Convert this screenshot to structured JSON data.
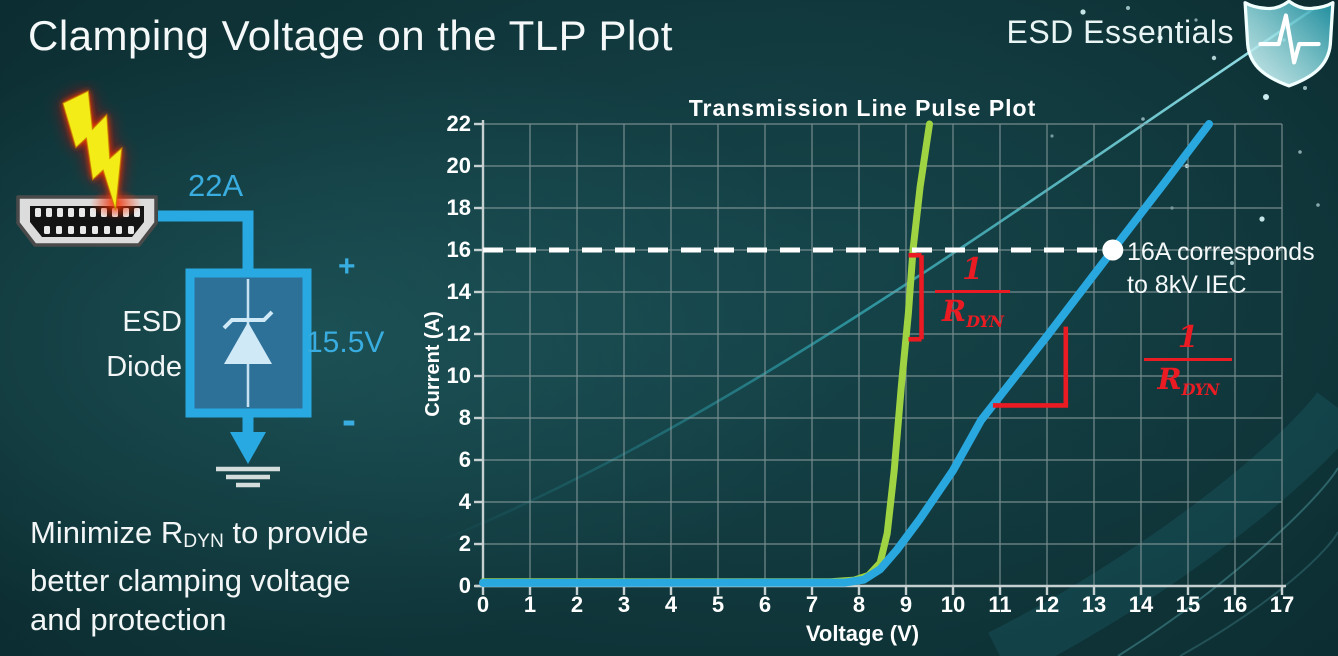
{
  "slide": {
    "title": "Clamping Voltage on the TLP Plot",
    "brand": "ESD Essentials",
    "brand_icon": "shield-pulse-icon",
    "caption": {
      "line1_pre": "Minimize R",
      "line1_sub": "DYN",
      "line1_post": " to provide",
      "line2": "better clamping voltage",
      "line3": "and protection"
    }
  },
  "diagram": {
    "surge_current_label": "22A",
    "device_label_line1": "ESD",
    "device_label_line2": "Diode",
    "plus_label": "+",
    "clamp_voltage_label": "15.5V",
    "minus_label": "-",
    "icons": [
      "lightning-icon",
      "hdmi-connector-icon",
      "zener-diode-icon",
      "ground-icon"
    ],
    "accent_color": "#29a9e2"
  },
  "chart_data": {
    "type": "line",
    "title": "Transmission Line Pulse Plot",
    "xlabel": "Voltage (V)",
    "ylabel": "Current (A)",
    "xlim": [
      0,
      17
    ],
    "ylim": [
      0,
      22
    ],
    "xticks": [
      0,
      1,
      2,
      3,
      4,
      5,
      6,
      7,
      8,
      9,
      10,
      11,
      12,
      13,
      14,
      15,
      16,
      17
    ],
    "yticks": [
      0,
      2,
      4,
      6,
      8,
      10,
      12,
      14,
      16,
      18,
      20,
      22
    ],
    "grid": true,
    "legend": "none",
    "series": [
      {
        "id": "green-curve-low-rdyn",
        "color": "#9fd342",
        "width": 7,
        "points": [
          [
            0,
            0.2
          ],
          [
            7.4,
            0.2
          ],
          [
            7.9,
            0.28
          ],
          [
            8.2,
            0.5
          ],
          [
            8.45,
            1.1
          ],
          [
            8.6,
            2.5
          ],
          [
            8.75,
            5.5
          ],
          [
            8.9,
            9.5
          ],
          [
            9.05,
            13
          ],
          [
            9.15,
            16
          ],
          [
            9.3,
            19
          ],
          [
            9.5,
            22
          ]
        ]
      },
      {
        "id": "blue-curve-high-rdyn",
        "color": "#29a8e0",
        "width": 8,
        "points": [
          [
            0,
            0.15
          ],
          [
            7.7,
            0.16
          ],
          [
            8.1,
            0.3
          ],
          [
            8.45,
            0.8
          ],
          [
            8.8,
            1.7
          ],
          [
            9.3,
            3.2
          ],
          [
            10.0,
            5.5
          ],
          [
            10.6,
            7.9
          ],
          [
            12.0,
            11.9
          ],
          [
            13.4,
            16
          ],
          [
            14.5,
            19.2
          ],
          [
            15.45,
            22
          ]
        ]
      }
    ],
    "reference": {
      "y": 16,
      "marker_x": 13.4,
      "label_line1": "16A corresponds",
      "label_line2": "to 8kV IEC",
      "color": "#ffffff"
    },
    "slope_marks": [
      {
        "type": "bracket",
        "x": 9.33,
        "y_top": 15.75,
        "y_bot": 11.75
      },
      {
        "type": "angle",
        "x_v": 12.4,
        "y_top": 12.35,
        "y_bot": 8.6,
        "x_h_start": 10.85
      }
    ],
    "fractions": [
      {
        "num": "1",
        "den_main": "R",
        "den_sub": "DYN"
      },
      {
        "num": "1",
        "den_main": "R",
        "den_sub": "DYN"
      }
    ],
    "colors": {
      "grid": "#8fa0a1",
      "axis": "#c6d0d0",
      "red": "#ea1b23"
    }
  }
}
